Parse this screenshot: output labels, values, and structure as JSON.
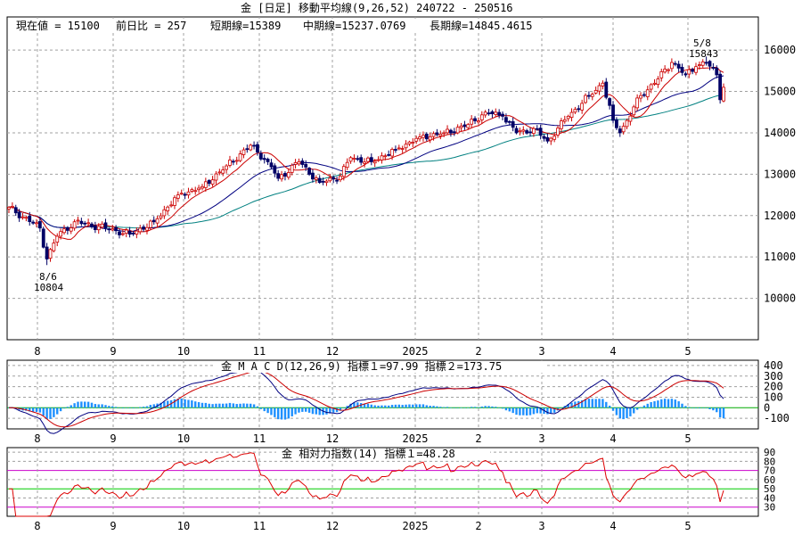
{
  "title": "金 [日足]  移動平均線(9,26,52)  240722 - 250516",
  "info": {
    "current": "現在値 = 15100",
    "change": "前日比 = 257",
    "short": "短期線=15389",
    "mid": "中期線=15237.0769",
    "long": "長期線=14845.4615"
  },
  "annotations": {
    "high_date": "5/8",
    "high_value": "15843",
    "low_date": "8/6",
    "low_value": "10804"
  },
  "macd_title": "金   M A C D(12,26,9)  指標１=97.99   指標２=173.75",
  "rsi_title": "金    相対力指数(14) 指標１=48.28",
  "colors": {
    "up": "#cc0000",
    "down": "#000066",
    "ma_short": "#cc0000",
    "ma_mid": "#000080",
    "ma_long": "#008080",
    "hist": "#1e90ff",
    "grid": "#a0a0a0",
    "rsi_line": "#dd0000",
    "rsi_green": "#00cc00",
    "rsi_magenta": "#cc00cc"
  },
  "chart_data": [
    {
      "type": "candlestick",
      "title": "金 [日足]  移動平均線(9,26,52)  240722 - 250516",
      "x_tick_labels": [
        "8",
        "9",
        "10",
        "11",
        "12",
        "2025",
        "2",
        "3",
        "4",
        "5"
      ],
      "y_tick_labels": [
        "16000",
        "15000",
        "14000",
        "13000",
        "12000",
        "11000",
        "10000"
      ],
      "ylim": [
        9000,
        16800
      ],
      "grid": true,
      "keypoints": [
        {
          "index": 0,
          "close": 12200
        },
        {
          "index": 9,
          "close": 11700
        },
        {
          "index": 11,
          "close": 10950
        },
        {
          "index": 14,
          "close": 11500
        },
        {
          "index": 19,
          "close": 11850
        },
        {
          "index": 28,
          "close": 11700
        },
        {
          "index": 35,
          "close": 11550
        },
        {
          "index": 42,
          "close": 11850
        },
        {
          "index": 49,
          "close": 12500
        },
        {
          "index": 56,
          "close": 12700
        },
        {
          "index": 63,
          "close": 13200
        },
        {
          "index": 70,
          "close": 13700
        },
        {
          "index": 75,
          "close": 13300
        },
        {
          "index": 78,
          "close": 12900
        },
        {
          "index": 84,
          "close": 13300
        },
        {
          "index": 90,
          "close": 12800
        },
        {
          "index": 96,
          "close": 12950
        },
        {
          "index": 99,
          "close": 13400
        },
        {
          "index": 105,
          "close": 13300
        },
        {
          "index": 112,
          "close": 13600
        },
        {
          "index": 119,
          "close": 13900
        },
        {
          "index": 126,
          "close": 14000
        },
        {
          "index": 133,
          "close": 14200
        },
        {
          "index": 138,
          "close": 14500
        },
        {
          "index": 143,
          "close": 14400
        },
        {
          "index": 147,
          "close": 14000
        },
        {
          "index": 152,
          "close": 14100
        },
        {
          "index": 156,
          "close": 13800
        },
        {
          "index": 162,
          "close": 14400
        },
        {
          "index": 168,
          "close": 14900
        },
        {
          "index": 172,
          "close": 15200
        },
        {
          "index": 175,
          "close": 14300
        },
        {
          "index": 177,
          "close": 14000
        },
        {
          "index": 183,
          "close": 14900
        },
        {
          "index": 188,
          "close": 15300
        },
        {
          "index": 192,
          "close": 15700
        },
        {
          "index": 196,
          "close": 15400
        },
        {
          "index": 199,
          "close": 15600
        },
        {
          "index": 202,
          "close": 15700
        },
        {
          "index": 205,
          "close": 15400
        },
        {
          "index": 206,
          "close": 14800
        },
        {
          "index": 207,
          "close": 15100
        }
      ],
      "series": [
        {
          "name": "短期線",
          "value": 15389
        },
        {
          "name": "中期線",
          "value": 15237.0769
        },
        {
          "name": "長期線",
          "value": 14845.4615
        }
      ]
    },
    {
      "type": "line",
      "title": "金   M A C D(12,26,9)  指標１=97.99   指標２=173.75",
      "y_tick_labels": [
        "400",
        "300",
        "200",
        "100",
        "0",
        "-100"
      ],
      "ylim": [
        -200,
        450
      ],
      "series": [
        {
          "name": "指標１",
          "last": 97.99
        },
        {
          "name": "指標２",
          "last": 173.75
        }
      ]
    },
    {
      "type": "line",
      "title": "金    相対力指数(14) 指標１=48.28",
      "y_tick_labels": [
        "90",
        "80",
        "70",
        "60",
        "50",
        "40",
        "30"
      ],
      "ylim": [
        20,
        95
      ],
      "series": [
        {
          "name": "指標１",
          "last": 48.28
        }
      ]
    }
  ]
}
